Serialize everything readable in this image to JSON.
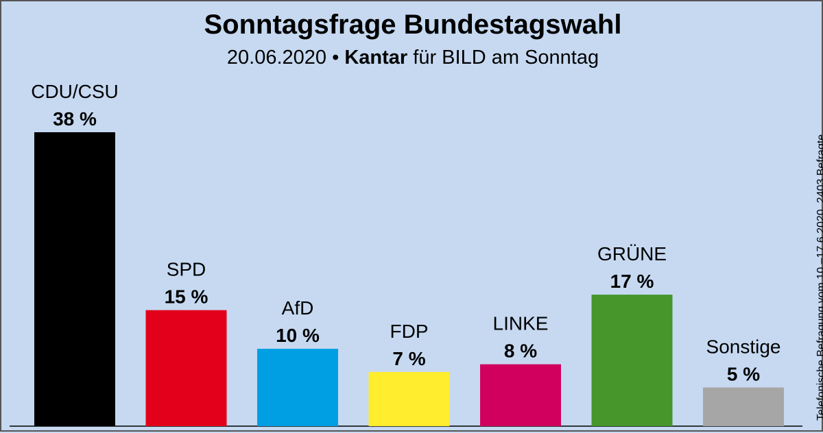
{
  "chart_data": {
    "type": "bar",
    "title": "Sonntagsfrage Bundestagswahl",
    "subtitle": {
      "date": "20.06.2020",
      "separator": "•",
      "institute": "Kantar",
      "client": "für BILD am Sonntag"
    },
    "categories": [
      "CDU/CSU",
      "SPD",
      "AfD",
      "FDP",
      "LINKE",
      "GRÜNE",
      "Sonstige"
    ],
    "values": [
      38,
      15,
      10,
      7,
      8,
      17,
      5
    ],
    "value_labels": [
      "38 %",
      "15 %",
      "10 %",
      "7 %",
      "8 %",
      "17 %",
      "5 %"
    ],
    "colors": [
      "#000000",
      "#e3001b",
      "#009fe3",
      "#ffed2e",
      "#d1005f",
      "#46962b",
      "#a6a6a6"
    ],
    "ylim": [
      0,
      38
    ],
    "grid": false,
    "legend": "none",
    "note": "Telefonische Befragung vom 10.–17.6.2020, 2403 Befragte"
  }
}
